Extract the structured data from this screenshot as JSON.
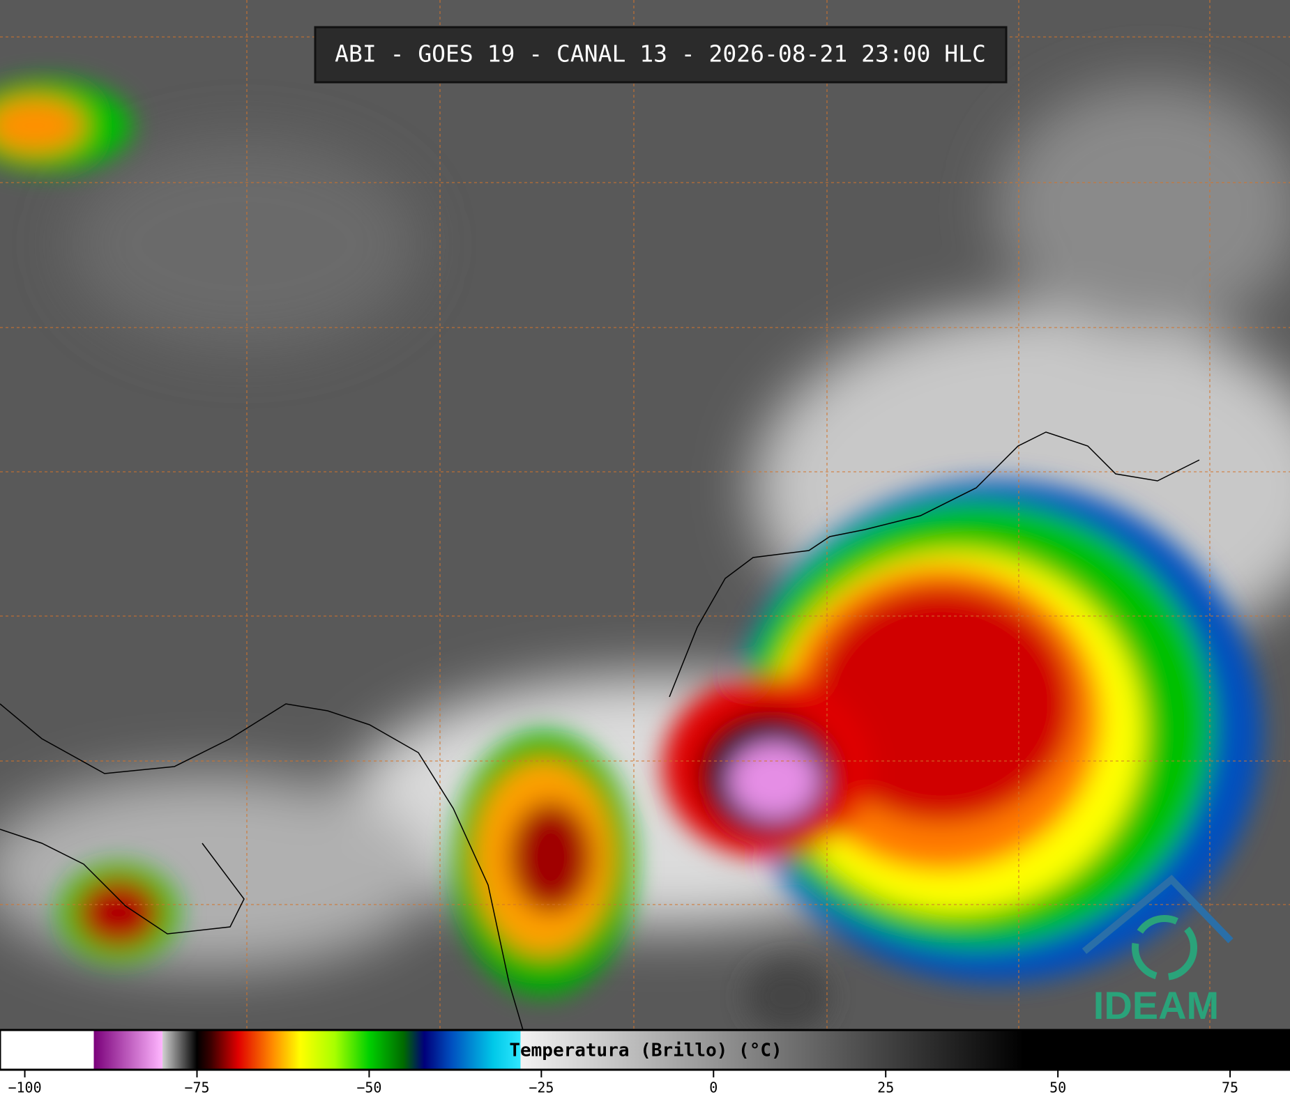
{
  "header": {
    "title": "ABI - GOES 19 - CANAL 13 - 2026-08-21 23:00 HLC"
  },
  "colorbar": {
    "label": "Temperatura (Brillo) (°C)",
    "xlim": [
      -103.6,
      83.7
    ],
    "xticks": [
      {
        "value": -100,
        "label": "−100"
      },
      {
        "value": -75,
        "label": "−75"
      },
      {
        "value": -50,
        "label": "−50"
      },
      {
        "value": -25,
        "label": "−25"
      },
      0,
      25,
      50,
      75
    ],
    "stops": [
      [
        -103.6,
        "#ffffff"
      ],
      [
        -90,
        "#ffffff"
      ],
      [
        -90,
        "#7a007a"
      ],
      [
        -80,
        "#ffb6ff"
      ],
      [
        -80,
        "#d0d0d0"
      ],
      [
        -75,
        "#000000"
      ],
      [
        -73,
        "#3a0000"
      ],
      [
        -69,
        "#e00000"
      ],
      [
        -64,
        "#ff8c00"
      ],
      [
        -60,
        "#ffff00"
      ],
      [
        -55,
        "#a8ff00"
      ],
      [
        -50,
        "#00d000"
      ],
      [
        -45,
        "#006a00"
      ],
      [
        -42,
        "#00007a"
      ],
      [
        -38,
        "#0050c0"
      ],
      [
        -32,
        "#00c8e8"
      ],
      [
        -28,
        "#30e8ff"
      ],
      [
        -28,
        "#f2f2f2"
      ],
      [
        45,
        "#000000"
      ],
      [
        83.7,
        "#000000"
      ]
    ]
  },
  "logo": {
    "text": "IDEAM"
  }
}
